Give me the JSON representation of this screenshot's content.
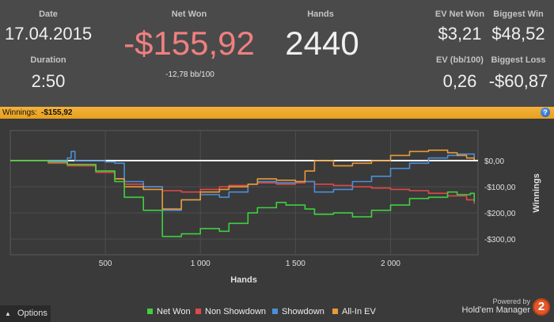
{
  "stats": {
    "date_label": "Date",
    "date_value": "17.04.2015",
    "duration_label": "Duration",
    "duration_value": "2:50",
    "netwon_label": "Net Won",
    "netwon_value": "-$155,92",
    "netwon_sub": "-12,78 bb/100",
    "hands_label": "Hands",
    "hands_value": "2440",
    "evnet_label": "EV Net Won",
    "evnet_value": "$3,21",
    "ev_bb_label": "EV (bb/100)",
    "ev_bb_value": "0,26",
    "biggest_win_label": "Biggest Win",
    "biggest_win_value": "$48,52",
    "biggest_loss_label": "Biggest Loss",
    "biggest_loss_value": "-$60,87"
  },
  "winnings_bar": {
    "label": "Winnings:",
    "value": "-$155,92",
    "help_icon": "?"
  },
  "options": {
    "label": "Options",
    "arrow": "▲"
  },
  "branding": {
    "powered": "Powered by",
    "name": "Hold'em Manager",
    "logo_text": "2"
  },
  "colors": {
    "net_won": "#3fd03f",
    "non_showdown": "#e04848",
    "showdown": "#4a8fd8",
    "all_in_ev": "#e89a38",
    "negative": "#f08080",
    "accent_bar": "#f0ad30"
  },
  "chart_data": {
    "type": "line",
    "xlabel": "Hands",
    "ylabel": "Winnings",
    "xlim": [
      0,
      2460
    ],
    "ylim": [
      -360,
      115
    ],
    "x_ticks": [
      500,
      1000,
      1500,
      2000
    ],
    "x_tick_labels": [
      "500",
      "1 000",
      "1 500",
      "2 000"
    ],
    "y_ticks": [
      0,
      -100,
      -200,
      -300
    ],
    "y_tick_labels": [
      "$0,00",
      "-$100,00",
      "-$200,00",
      "-$300,00"
    ],
    "grid": true,
    "legend_position": "bottom",
    "reference_line": 0,
    "series": [
      {
        "name": "Net Won",
        "color": "#3fd03f",
        "x": [
          0,
          200,
          300,
          450,
          550,
          600,
          700,
          800,
          900,
          1000,
          1100,
          1150,
          1250,
          1300,
          1400,
          1450,
          1550,
          1600,
          1700,
          1800,
          1900,
          2000,
          2100,
          2200,
          2300,
          2350,
          2420,
          2440
        ],
        "y": [
          0,
          -5,
          -15,
          -40,
          -80,
          -140,
          -190,
          -290,
          -280,
          -260,
          -270,
          -240,
          -200,
          -180,
          -160,
          -170,
          -185,
          -205,
          -200,
          -215,
          -190,
          -170,
          -145,
          -140,
          -120,
          -130,
          -125,
          -156
        ]
      },
      {
        "name": "Non Showdown",
        "color": "#e04848",
        "x": [
          0,
          200,
          300,
          450,
          550,
          600,
          700,
          800,
          900,
          1000,
          1100,
          1150,
          1250,
          1300,
          1400,
          1500,
          1550,
          1600,
          1700,
          1800,
          1900,
          2000,
          2100,
          2200,
          2300,
          2400,
          2440
        ],
        "y": [
          0,
          -10,
          -20,
          -45,
          -70,
          -90,
          -100,
          -115,
          -120,
          -110,
          -100,
          -95,
          -90,
          -85,
          -90,
          -85,
          -80,
          -90,
          -95,
          -100,
          -105,
          -110,
          -115,
          -125,
          -135,
          -150,
          -165
        ]
      },
      {
        "name": "Showdown",
        "color": "#4a8fd8",
        "x": [
          0,
          300,
          320,
          340,
          500,
          550,
          600,
          700,
          800,
          900,
          1000,
          1100,
          1150,
          1250,
          1300,
          1400,
          1500,
          1550,
          1600,
          1700,
          1800,
          1900,
          2000,
          2100,
          2200,
          2300,
          2350,
          2440
        ],
        "y": [
          0,
          10,
          35,
          0,
          -5,
          -10,
          -80,
          -100,
          -190,
          -150,
          -130,
          -140,
          -120,
          -90,
          -80,
          -85,
          -80,
          -80,
          -120,
          -110,
          -80,
          -60,
          -30,
          -10,
          10,
          20,
          25,
          8
        ]
      },
      {
        "name": "All-In EV",
        "color": "#e89a38",
        "x": [
          0,
          200,
          300,
          450,
          550,
          600,
          700,
          800,
          900,
          1000,
          1100,
          1150,
          1250,
          1300,
          1400,
          1500,
          1550,
          1600,
          1700,
          1800,
          1900,
          2000,
          2100,
          2200,
          2300,
          2350,
          2400,
          2440
        ],
        "y": [
          0,
          -5,
          -15,
          -40,
          -70,
          -100,
          -110,
          -185,
          -150,
          -120,
          -110,
          -100,
          -90,
          -70,
          -75,
          -80,
          -40,
          0,
          -20,
          -10,
          0,
          20,
          35,
          40,
          30,
          20,
          10,
          3
        ]
      }
    ]
  }
}
